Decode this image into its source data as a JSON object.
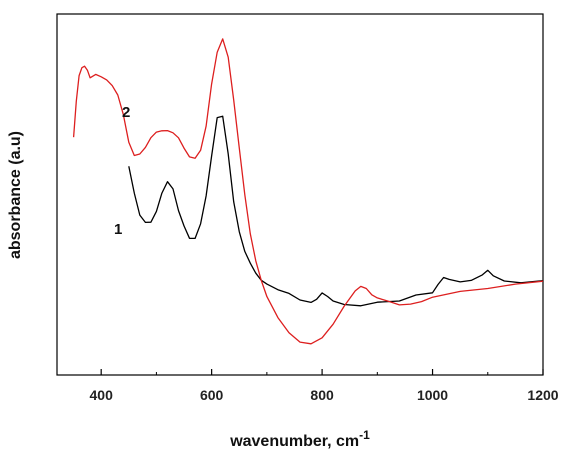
{
  "chart_data": {
    "type": "line",
    "title": "",
    "xlabel": "wavenumber, cm",
    "xlabel_superscript": "-1",
    "ylabel": "absorbance (a.u)",
    "xlim": [
      320,
      1200
    ],
    "ylim": [
      0,
      1
    ],
    "xticks": [
      "400",
      "600",
      "800",
      "1000",
      "1200"
    ],
    "grid": false,
    "legend": "none",
    "series": [
      {
        "name": "1",
        "color": "#000000",
        "x": [
          450,
          460,
          470,
          480,
          490,
          500,
          510,
          520,
          530,
          540,
          550,
          560,
          570,
          580,
          590,
          600,
          610,
          620,
          630,
          640,
          650,
          660,
          670,
          680,
          690,
          700,
          720,
          740,
          760,
          780,
          790,
          800,
          810,
          820,
          840,
          870,
          900,
          940,
          970,
          1000,
          1010,
          1020,
          1030,
          1050,
          1070,
          1090,
          1100,
          1110,
          1130,
          1160,
          1200
        ],
        "y": [
          0.625,
          0.53,
          0.45,
          0.425,
          0.43,
          0.47,
          0.53,
          0.565,
          0.54,
          0.47,
          0.42,
          0.375,
          0.37,
          0.42,
          0.52,
          0.66,
          0.79,
          0.79,
          0.66,
          0.5,
          0.4,
          0.33,
          0.285,
          0.25,
          0.23,
          0.22,
          0.2,
          0.185,
          0.16,
          0.15,
          0.165,
          0.19,
          0.175,
          0.155,
          0.145,
          0.145,
          0.15,
          0.16,
          0.175,
          0.19,
          0.215,
          0.235,
          0.23,
          0.22,
          0.225,
          0.245,
          0.26,
          0.245,
          0.225,
          0.22,
          0.225
        ]
      },
      {
        "name": "2",
        "color": "#dd1f1f",
        "x": [
          350,
          355,
          360,
          365,
          370,
          375,
          380,
          390,
          400,
          410,
          420,
          430,
          440,
          450,
          460,
          470,
          480,
          490,
          500,
          510,
          520,
          530,
          540,
          550,
          560,
          570,
          580,
          590,
          600,
          610,
          620,
          630,
          640,
          650,
          660,
          670,
          680,
          690,
          700,
          720,
          740,
          760,
          780,
          800,
          820,
          840,
          860,
          870,
          880,
          890,
          900,
          920,
          940,
          960,
          980,
          1000,
          1050,
          1100,
          1150,
          1200
        ],
        "y": [
          0.74,
          0.85,
          0.92,
          0.94,
          0.955,
          0.96,
          0.945,
          0.94,
          0.925,
          0.915,
          0.9,
          0.87,
          0.8,
          0.7,
          0.655,
          0.665,
          0.69,
          0.72,
          0.735,
          0.74,
          0.745,
          0.74,
          0.72,
          0.68,
          0.65,
          0.65,
          0.68,
          0.76,
          0.9,
          1.01,
          1.06,
          1.0,
          0.85,
          0.68,
          0.52,
          0.39,
          0.3,
          0.23,
          0.17,
          0.1,
          0.05,
          0.02,
          0.015,
          0.035,
          0.08,
          0.14,
          0.19,
          0.21,
          0.205,
          0.18,
          0.165,
          0.155,
          0.145,
          0.15,
          0.16,
          0.175,
          0.195,
          0.205,
          0.22,
          0.23
        ]
      }
    ]
  }
}
